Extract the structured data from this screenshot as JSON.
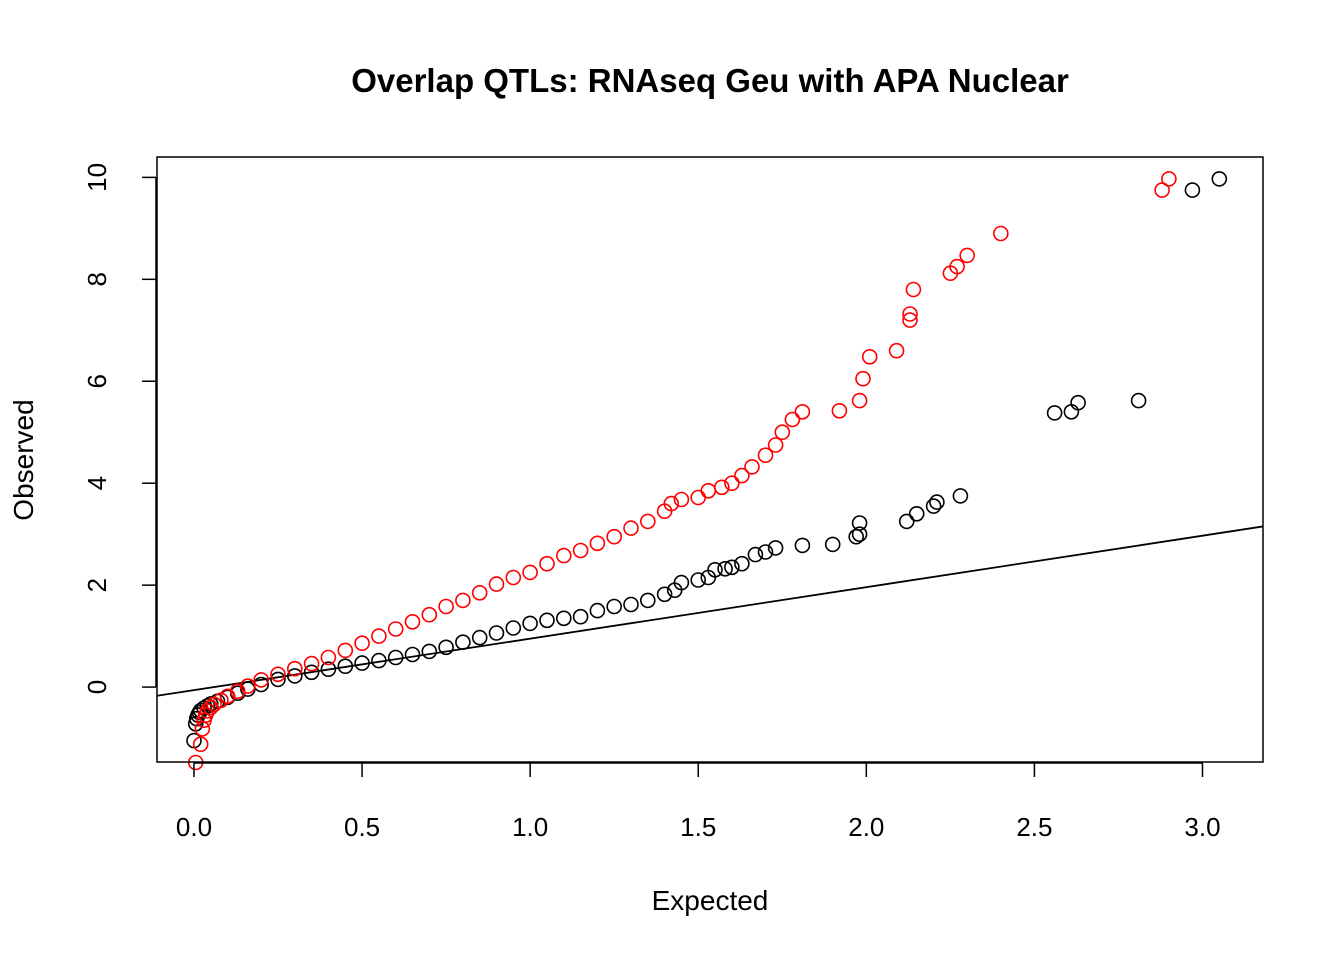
{
  "chart_data": {
    "type": "scatter",
    "title": "Overlap QTLs: RNAseq Geu with APA Nuclear",
    "xlabel": "Expected",
    "ylabel": "Observed",
    "xlim": [
      -0.11,
      3.18
    ],
    "ylim": [
      -1.47,
      10.4
    ],
    "xticks": [
      "0.0",
      "0.5",
      "1.0",
      "1.5",
      "2.0",
      "2.5",
      "3.0"
    ],
    "yticks": [
      "0",
      "2",
      "4",
      "6",
      "8",
      "10"
    ],
    "grid": false,
    "legend": "none",
    "reference_line": {
      "intercept": -0.06,
      "slope": 1.01,
      "color": "#000000"
    },
    "series": [
      {
        "color": "#000000",
        "marker": "open-circle",
        "points": [
          [
            0.0,
            -1.05
          ],
          [
            0.005,
            -0.72
          ],
          [
            0.008,
            -0.62
          ],
          [
            0.012,
            -0.55
          ],
          [
            0.016,
            -0.5
          ],
          [
            0.02,
            -0.46
          ],
          [
            0.03,
            -0.41
          ],
          [
            0.04,
            -0.37
          ],
          [
            0.05,
            -0.33
          ],
          [
            0.07,
            -0.28
          ],
          [
            0.1,
            -0.2
          ],
          [
            0.13,
            -0.12
          ],
          [
            0.16,
            -0.04
          ],
          [
            0.2,
            0.05
          ],
          [
            0.25,
            0.15
          ],
          [
            0.3,
            0.22
          ],
          [
            0.35,
            0.29
          ],
          [
            0.4,
            0.35
          ],
          [
            0.45,
            0.41
          ],
          [
            0.5,
            0.47
          ],
          [
            0.55,
            0.52
          ],
          [
            0.6,
            0.58
          ],
          [
            0.65,
            0.64
          ],
          [
            0.7,
            0.7
          ],
          [
            0.75,
            0.78
          ],
          [
            0.8,
            0.88
          ],
          [
            0.85,
            0.97
          ],
          [
            0.9,
            1.06
          ],
          [
            0.95,
            1.16
          ],
          [
            1.0,
            1.25
          ],
          [
            1.05,
            1.31
          ],
          [
            1.1,
            1.35
          ],
          [
            1.15,
            1.38
          ],
          [
            1.2,
            1.5
          ],
          [
            1.25,
            1.58
          ],
          [
            1.3,
            1.62
          ],
          [
            1.35,
            1.7
          ],
          [
            1.4,
            1.82
          ],
          [
            1.43,
            1.9
          ],
          [
            1.45,
            2.05
          ],
          [
            1.5,
            2.1
          ],
          [
            1.53,
            2.15
          ],
          [
            1.55,
            2.3
          ],
          [
            1.58,
            2.32
          ],
          [
            1.6,
            2.35
          ],
          [
            1.63,
            2.42
          ],
          [
            1.67,
            2.6
          ],
          [
            1.7,
            2.65
          ],
          [
            1.73,
            2.73
          ],
          [
            1.81,
            2.78
          ],
          [
            1.9,
            2.8
          ],
          [
            1.97,
            2.95
          ],
          [
            1.98,
            3.0
          ],
          [
            1.98,
            3.22
          ],
          [
            2.12,
            3.25
          ],
          [
            2.15,
            3.4
          ],
          [
            2.2,
            3.55
          ],
          [
            2.21,
            3.63
          ],
          [
            2.28,
            3.75
          ],
          [
            2.56,
            5.38
          ],
          [
            2.61,
            5.4
          ],
          [
            2.63,
            5.58
          ],
          [
            2.81,
            5.62
          ],
          [
            2.97,
            9.75
          ],
          [
            3.05,
            9.97
          ]
        ]
      },
      {
        "color": "#ff0000",
        "marker": "open-circle",
        "points": [
          [
            0.005,
            -1.48
          ],
          [
            0.02,
            -1.12
          ],
          [
            0.025,
            -0.82
          ],
          [
            0.03,
            -0.65
          ],
          [
            0.035,
            -0.55
          ],
          [
            0.04,
            -0.47
          ],
          [
            0.05,
            -0.4
          ],
          [
            0.06,
            -0.34
          ],
          [
            0.08,
            -0.26
          ],
          [
            0.1,
            -0.18
          ],
          [
            0.13,
            -0.08
          ],
          [
            0.16,
            0.02
          ],
          [
            0.2,
            0.14
          ],
          [
            0.25,
            0.25
          ],
          [
            0.3,
            0.36
          ],
          [
            0.35,
            0.46
          ],
          [
            0.4,
            0.58
          ],
          [
            0.45,
            0.72
          ],
          [
            0.5,
            0.86
          ],
          [
            0.55,
            1.0
          ],
          [
            0.6,
            1.14
          ],
          [
            0.65,
            1.28
          ],
          [
            0.7,
            1.42
          ],
          [
            0.75,
            1.58
          ],
          [
            0.8,
            1.7
          ],
          [
            0.85,
            1.85
          ],
          [
            0.9,
            2.02
          ],
          [
            0.95,
            2.15
          ],
          [
            1.0,
            2.25
          ],
          [
            1.05,
            2.42
          ],
          [
            1.1,
            2.58
          ],
          [
            1.15,
            2.68
          ],
          [
            1.2,
            2.82
          ],
          [
            1.25,
            2.95
          ],
          [
            1.3,
            3.12
          ],
          [
            1.35,
            3.25
          ],
          [
            1.4,
            3.45
          ],
          [
            1.42,
            3.6
          ],
          [
            1.45,
            3.68
          ],
          [
            1.5,
            3.72
          ],
          [
            1.53,
            3.85
          ],
          [
            1.57,
            3.92
          ],
          [
            1.6,
            4.0
          ],
          [
            1.63,
            4.15
          ],
          [
            1.66,
            4.32
          ],
          [
            1.7,
            4.55
          ],
          [
            1.73,
            4.75
          ],
          [
            1.75,
            5.0
          ],
          [
            1.78,
            5.25
          ],
          [
            1.81,
            5.4
          ],
          [
            1.92,
            5.42
          ],
          [
            1.98,
            5.62
          ],
          [
            1.99,
            6.05
          ],
          [
            2.01,
            6.48
          ],
          [
            2.09,
            6.6
          ],
          [
            2.13,
            7.2
          ],
          [
            2.13,
            7.32
          ],
          [
            2.14,
            7.8
          ],
          [
            2.25,
            8.12
          ],
          [
            2.27,
            8.25
          ],
          [
            2.3,
            8.47
          ],
          [
            2.4,
            8.9
          ],
          [
            2.88,
            9.75
          ],
          [
            2.9,
            9.97
          ]
        ]
      }
    ]
  }
}
